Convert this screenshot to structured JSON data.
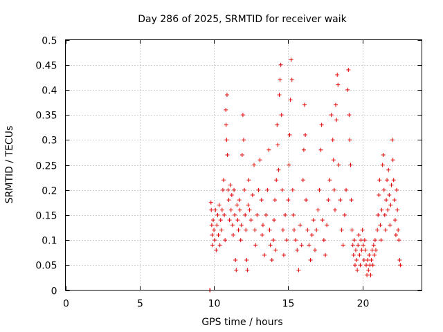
{
  "chart_data": {
    "type": "scatter",
    "title": "Day 286 of 2025, SRMTID for receiver waik",
    "xlabel": "GPS time / hours",
    "ylabel": "SRMTID / TECUs",
    "xlim": [
      0,
      24
    ],
    "ylim": [
      0,
      0.5
    ],
    "grid": true,
    "marker": "plus",
    "series_color": "#e00000",
    "x_ticks": [
      0,
      5,
      10,
      15,
      20
    ],
    "x_tick_labels": [
      "0",
      "5",
      "10",
      "15",
      "20"
    ],
    "y_ticks": [
      0,
      0.05,
      0.1,
      0.15,
      0.2,
      0.25,
      0.3,
      0.35,
      0.4,
      0.45,
      0.5
    ],
    "y_tick_labels": [
      "0",
      "0.05",
      "0.1",
      "0.15",
      "0.2",
      "0.25",
      "0.3",
      "0.35",
      "0.4",
      "0.45",
      "0.5"
    ],
    "series": [
      {
        "name": "SRMTID",
        "points": [
          [
            9.72,
            0.0
          ],
          [
            9.74,
            0.0
          ],
          [
            9.8,
            0.175
          ],
          [
            9.82,
            0.16
          ],
          [
            9.85,
            0.13
          ],
          [
            9.88,
            0.11
          ],
          [
            9.9,
            0.09
          ],
          [
            9.95,
            0.14
          ],
          [
            10.0,
            0.12
          ],
          [
            10.05,
            0.1
          ],
          [
            10.1,
            0.16
          ],
          [
            10.15,
            0.08
          ],
          [
            10.2,
            0.13
          ],
          [
            10.25,
            0.15
          ],
          [
            10.3,
            0.11
          ],
          [
            10.35,
            0.17
          ],
          [
            10.4,
            0.09
          ],
          [
            10.45,
            0.14
          ],
          [
            10.5,
            0.12
          ],
          [
            10.55,
            0.16
          ],
          [
            10.6,
            0.2
          ],
          [
            10.65,
            0.22
          ],
          [
            10.7,
            0.15
          ],
          [
            10.75,
            0.1
          ],
          [
            10.8,
            0.36
          ],
          [
            10.82,
            0.33
          ],
          [
            10.85,
            0.3
          ],
          [
            10.88,
            0.39
          ],
          [
            10.9,
            0.27
          ],
          [
            10.95,
            0.2
          ],
          [
            11.0,
            0.18
          ],
          [
            11.05,
            0.14
          ],
          [
            11.1,
            0.21
          ],
          [
            11.15,
            0.16
          ],
          [
            11.2,
            0.19
          ],
          [
            11.25,
            0.13
          ],
          [
            11.3,
            0.11
          ],
          [
            11.35,
            0.2
          ],
          [
            11.4,
            0.15
          ],
          [
            11.45,
            0.06
          ],
          [
            11.5,
            0.04
          ],
          [
            11.55,
            0.17
          ],
          [
            11.6,
            0.14
          ],
          [
            11.65,
            0.12
          ],
          [
            11.7,
            0.18
          ],
          [
            11.75,
            0.16
          ],
          [
            11.8,
            0.1
          ],
          [
            11.85,
            0.13
          ],
          [
            11.9,
            0.27
          ],
          [
            11.95,
            0.35
          ],
          [
            12.0,
            0.3
          ],
          [
            12.05,
            0.2
          ],
          [
            12.1,
            0.15
          ],
          [
            12.15,
            0.12
          ],
          [
            12.2,
            0.06
          ],
          [
            12.25,
            0.04
          ],
          [
            12.3,
            0.17
          ],
          [
            12.35,
            0.22
          ],
          [
            12.4,
            0.16
          ],
          [
            12.5,
            0.14
          ],
          [
            12.6,
            0.19
          ],
          [
            12.7,
            0.25
          ],
          [
            12.75,
            0.12
          ],
          [
            12.8,
            0.09
          ],
          [
            12.9,
            0.15
          ],
          [
            13.0,
            0.2
          ],
          [
            13.1,
            0.26
          ],
          [
            13.2,
            0.18
          ],
          [
            13.25,
            0.11
          ],
          [
            13.3,
            0.13
          ],
          [
            13.4,
            0.07
          ],
          [
            13.5,
            0.15
          ],
          [
            13.6,
            0.2
          ],
          [
            13.7,
            0.28
          ],
          [
            13.75,
            0.12
          ],
          [
            13.8,
            0.09
          ],
          [
            13.9,
            0.06
          ],
          [
            14.0,
            0.1
          ],
          [
            14.05,
            0.14
          ],
          [
            14.1,
            0.18
          ],
          [
            14.15,
            0.08
          ],
          [
            14.2,
            0.22
          ],
          [
            14.25,
            0.33
          ],
          [
            14.3,
            0.29
          ],
          [
            14.35,
            0.24
          ],
          [
            14.4,
            0.39
          ],
          [
            14.45,
            0.42
          ],
          [
            14.5,
            0.45
          ],
          [
            14.55,
            0.35
          ],
          [
            14.6,
            0.2
          ],
          [
            14.65,
            0.12
          ],
          [
            14.7,
            0.07
          ],
          [
            14.8,
            0.15
          ],
          [
            14.9,
            0.1
          ],
          [
            15.0,
            0.18
          ],
          [
            15.05,
            0.25
          ],
          [
            15.1,
            0.31
          ],
          [
            15.15,
            0.38
          ],
          [
            15.2,
            0.46
          ],
          [
            15.25,
            0.42
          ],
          [
            15.3,
            0.2
          ],
          [
            15.35,
            0.15
          ],
          [
            15.4,
            0.12
          ],
          [
            15.5,
            0.1
          ],
          [
            15.6,
            0.08
          ],
          [
            15.7,
            0.04
          ],
          [
            15.8,
            0.13
          ],
          [
            15.9,
            0.09
          ],
          [
            16.0,
            0.22
          ],
          [
            16.05,
            0.28
          ],
          [
            16.1,
            0.37
          ],
          [
            16.15,
            0.31
          ],
          [
            16.2,
            0.18
          ],
          [
            16.3,
            0.12
          ],
          [
            16.4,
            0.09
          ],
          [
            16.5,
            0.06
          ],
          [
            16.6,
            0.11
          ],
          [
            16.7,
            0.14
          ],
          [
            16.8,
            0.08
          ],
          [
            16.9,
            0.12
          ],
          [
            17.0,
            0.16
          ],
          [
            17.1,
            0.2
          ],
          [
            17.2,
            0.28
          ],
          [
            17.25,
            0.33
          ],
          [
            17.3,
            0.14
          ],
          [
            17.4,
            0.1
          ],
          [
            17.5,
            0.07
          ],
          [
            17.6,
            0.13
          ],
          [
            17.7,
            0.18
          ],
          [
            17.8,
            0.22
          ],
          [
            17.9,
            0.35
          ],
          [
            18.0,
            0.3
          ],
          [
            18.05,
            0.26
          ],
          [
            18.1,
            0.2
          ],
          [
            18.15,
            0.16
          ],
          [
            18.2,
            0.37
          ],
          [
            18.25,
            0.34
          ],
          [
            18.3,
            0.43
          ],
          [
            18.35,
            0.41
          ],
          [
            18.4,
            0.25
          ],
          [
            18.5,
            0.18
          ],
          [
            18.6,
            0.12
          ],
          [
            18.7,
            0.09
          ],
          [
            18.8,
            0.15
          ],
          [
            18.9,
            0.2
          ],
          [
            19.0,
            0.4
          ],
          [
            19.05,
            0.44
          ],
          [
            19.1,
            0.35
          ],
          [
            19.15,
            0.3
          ],
          [
            19.2,
            0.25
          ],
          [
            19.25,
            0.18
          ],
          [
            19.3,
            0.12
          ],
          [
            19.35,
            0.09
          ],
          [
            19.4,
            0.07
          ],
          [
            19.45,
            0.1
          ],
          [
            19.5,
            0.05
          ],
          [
            19.55,
            0.08
          ],
          [
            19.6,
            0.06
          ],
          [
            19.65,
            0.04
          ],
          [
            19.7,
            0.09
          ],
          [
            19.75,
            0.11
          ],
          [
            19.8,
            0.07
          ],
          [
            19.85,
            0.05
          ],
          [
            19.9,
            0.1
          ],
          [
            19.95,
            0.08
          ],
          [
            20.0,
            0.12
          ],
          [
            20.05,
            0.09
          ],
          [
            20.1,
            0.06
          ],
          [
            20.15,
            0.1
          ],
          [
            20.2,
            0.08
          ],
          [
            20.25,
            0.05
          ],
          [
            20.3,
            0.03
          ],
          [
            20.35,
            0.06
          ],
          [
            20.4,
            0.04
          ],
          [
            20.45,
            0.07
          ],
          [
            20.5,
            0.05
          ],
          [
            20.55,
            0.03
          ],
          [
            20.6,
            0.06
          ],
          [
            20.65,
            0.08
          ],
          [
            20.7,
            0.05
          ],
          [
            20.75,
            0.09
          ],
          [
            20.8,
            0.07
          ],
          [
            20.85,
            0.1
          ],
          [
            20.9,
            0.08
          ],
          [
            21.0,
            0.12
          ],
          [
            21.05,
            0.15
          ],
          [
            21.1,
            0.19
          ],
          [
            21.15,
            0.22
          ],
          [
            21.2,
            0.13
          ],
          [
            21.25,
            0.1
          ],
          [
            21.3,
            0.16
          ],
          [
            21.35,
            0.25
          ],
          [
            21.4,
            0.27
          ],
          [
            21.45,
            0.2
          ],
          [
            21.5,
            0.15
          ],
          [
            21.55,
            0.12
          ],
          [
            21.6,
            0.18
          ],
          [
            21.65,
            0.22
          ],
          [
            21.7,
            0.16
          ],
          [
            21.75,
            0.24
          ],
          [
            21.8,
            0.19
          ],
          [
            21.85,
            0.13
          ],
          [
            21.9,
            0.17
          ],
          [
            21.95,
            0.21
          ],
          [
            22.0,
            0.3
          ],
          [
            22.05,
            0.26
          ],
          [
            22.1,
            0.22
          ],
          [
            22.15,
            0.18
          ],
          [
            22.2,
            0.14
          ],
          [
            22.25,
            0.11
          ],
          [
            22.3,
            0.2
          ],
          [
            22.35,
            0.16
          ],
          [
            22.4,
            0.12
          ],
          [
            22.45,
            0.1
          ],
          [
            22.5,
            0.06
          ],
          [
            22.55,
            0.05
          ]
        ]
      }
    ]
  }
}
